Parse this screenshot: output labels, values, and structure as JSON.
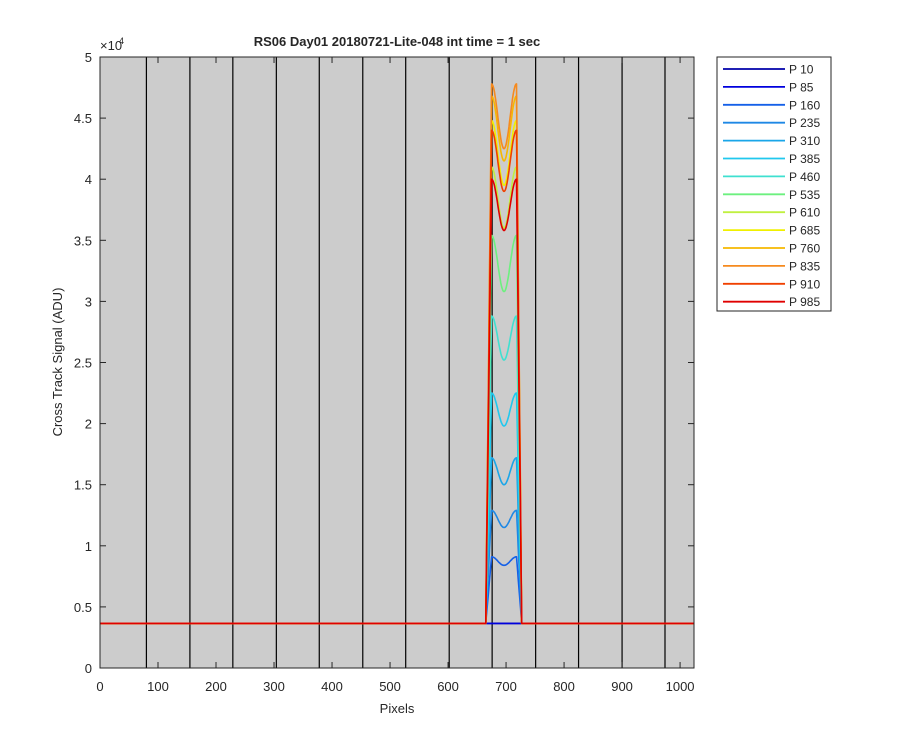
{
  "chart_data": {
    "type": "line",
    "title": "RS06 Day01 20180721-Lite-048 int time = 1 sec",
    "xlabel": "Pixels",
    "ylabel": "Cross Track Signal (ADU)",
    "xlim": [
      0,
      1024
    ],
    "ylim": [
      0,
      50000
    ],
    "y_exponent_label": "×10",
    "y_exponent_power": "4",
    "x_ticks": [
      0,
      100,
      200,
      300,
      400,
      500,
      600,
      700,
      800,
      900,
      1000
    ],
    "x_tick_labels": [
      "0",
      "100",
      "200",
      "300",
      "400",
      "500",
      "600",
      "700",
      "800",
      "900",
      "1000"
    ],
    "y_ticks": [
      0,
      5000,
      10000,
      15000,
      20000,
      25000,
      30000,
      35000,
      40000,
      45000,
      50000
    ],
    "y_tick_labels": [
      "0",
      "0.5",
      "1",
      "1.5",
      "2",
      "2.5",
      "3",
      "3.5",
      "4",
      "4.5",
      "5"
    ],
    "vertical_lines_x": [
      80,
      155,
      229,
      304,
      378,
      453,
      527,
      602,
      676,
      751,
      825,
      900,
      974
    ],
    "background_color": "#cccccc",
    "grid": false,
    "legend_position": "outside-right-top",
    "baseline": 3650,
    "signal_region": [
      660,
      740
    ],
    "series": [
      {
        "name": "P 10",
        "color": "#0000aa",
        "peak": 3650,
        "dip": 3650
      },
      {
        "name": "P 85",
        "color": "#0000dd",
        "peak": 3650,
        "dip": 3650
      },
      {
        "name": "P 160",
        "color": "#1560e8",
        "peak": 9100,
        "dip": 8400
      },
      {
        "name": "P 235",
        "color": "#1e88e5",
        "peak": 12900,
        "dip": 11500
      },
      {
        "name": "P 310",
        "color": "#1aa6e8",
        "peak": 17200,
        "dip": 15000
      },
      {
        "name": "P 385",
        "color": "#20c8ee",
        "peak": 22500,
        "dip": 19800
      },
      {
        "name": "P 460",
        "color": "#3fe0d0",
        "peak": 28800,
        "dip": 25200
      },
      {
        "name": "P 535",
        "color": "#6cf07f",
        "peak": 35400,
        "dip": 30800
      },
      {
        "name": "P 610",
        "color": "#c0f040",
        "peak": 41000,
        "dip": 36000
      },
      {
        "name": "P 685",
        "color": "#f0f000",
        "peak": 44800,
        "dip": 39500
      },
      {
        "name": "P 760",
        "color": "#f6b800",
        "peak": 46800,
        "dip": 41500
      },
      {
        "name": "P 835",
        "color": "#f68a1e",
        "peak": 47800,
        "dip": 42500
      },
      {
        "name": "P 910",
        "color": "#f04000",
        "peak": 44000,
        "dip": 39000
      },
      {
        "name": "P 985",
        "color": "#e00000",
        "peak": 40000,
        "dip": 35800
      }
    ]
  }
}
